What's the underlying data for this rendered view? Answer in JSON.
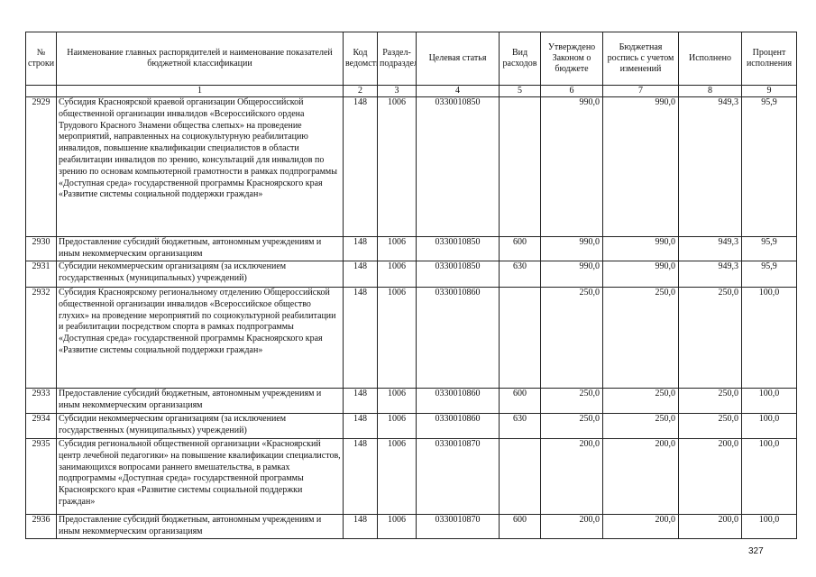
{
  "headers": [
    "№ строки",
    "Наименование главных распорядителей и наименование показателей бюджетной классификации",
    "Код ведомства",
    "Раздел-подраздел",
    "Целевая статья",
    "Вид расходов",
    "Утверждено Законом о бюджете",
    "Бюджетная роспись с учетом изменений",
    "Исполнено",
    "Процент исполнения"
  ],
  "column_numbers": [
    "",
    "1",
    "2",
    "3",
    "4",
    "5",
    "6",
    "7",
    "8",
    "9"
  ],
  "rows": [
    {
      "no": "2929",
      "name": "Субсидия Красноярской краевой организации Общероссийской общественной организации инвалидов «Всероссийского ордена Трудового Красного Знамени общества слепых» на проведение мероприятий, направленных на социокультурную реабилитацию инвалидов, повышение квалификации специалистов в области реабилитации инвалидов по зрению, консультаций для инвалидов по зрению по основам компьютерной грамотности в рамках подпрограммы «Доступная среда» государственной программы Красноярского края «Развитие системы социальной поддержки граждан»",
      "ved": "148",
      "razdel": "1006",
      "csr": "0330010850",
      "vr": "",
      "approved": "990,0",
      "budget": "990,0",
      "executed": "949,3",
      "percent": "95,9"
    },
    {
      "no": "2930",
      "name": "Предоставление субсидий бюджетным, автономным учреждениям и иным некоммерческим организациям",
      "ved": "148",
      "razdel": "1006",
      "csr": "0330010850",
      "vr": "600",
      "approved": "990,0",
      "budget": "990,0",
      "executed": "949,3",
      "percent": "95,9"
    },
    {
      "no": "2931",
      "name": "Субсидии некоммерческим организациям (за исключением государственных (муниципальных) учреждений)",
      "ved": "148",
      "razdel": "1006",
      "csr": "0330010850",
      "vr": "630",
      "approved": "990,0",
      "budget": "990,0",
      "executed": "949,3",
      "percent": "95,9"
    },
    {
      "no": "2932",
      "name": "Субсидия Красноярскому региональному отделению Общероссийской общественной организации инвалидов «Всероссийское общество глухих» на проведение мероприятий по социокультурной реабилитации и реабилитации посредством спорта в рамках подпрограммы «Доступная среда» государственной программы Красноярского края «Развитие системы социальной поддержки граждан»",
      "ved": "148",
      "razdel": "1006",
      "csr": "0330010860",
      "vr": "",
      "approved": "250,0",
      "budget": "250,0",
      "executed": "250,0",
      "percent": "100,0"
    },
    {
      "no": "2933",
      "name": "Предоставление субсидий бюджетным, автономным учреждениям и иным некоммерческим организациям",
      "ved": "148",
      "razdel": "1006",
      "csr": "0330010860",
      "vr": "600",
      "approved": "250,0",
      "budget": "250,0",
      "executed": "250,0",
      "percent": "100,0"
    },
    {
      "no": "2934",
      "name": "Субсидии некоммерческим организациям (за исключением государственных (муниципальных) учреждений)",
      "ved": "148",
      "razdel": "1006",
      "csr": "0330010860",
      "vr": "630",
      "approved": "250,0",
      "budget": "250,0",
      "executed": "250,0",
      "percent": "100,0"
    },
    {
      "no": "2935",
      "name": "Субсидия региональной общественной организации «Красноярский центр лечебной педагогики» на повышение квалификации специалистов, занимающихся вопросами раннего вмешательства, в рамках подпрограммы «Доступная среда» государственной программы Красноярского края «Развитие системы социальной поддержки граждан»",
      "ved": "148",
      "razdel": "1006",
      "csr": "0330010870",
      "vr": "",
      "approved": "200,0",
      "budget": "200,0",
      "executed": "200,0",
      "percent": "100,0"
    },
    {
      "no": "2936",
      "name": "Предоставление субсидий бюджетным, автономным учреждениям и иным некоммерческим организациям",
      "ved": "148",
      "razdel": "1006",
      "csr": "0330010870",
      "vr": "600",
      "approved": "200,0",
      "budget": "200,0",
      "executed": "200,0",
      "percent": "100,0"
    }
  ],
  "page_number": "327"
}
